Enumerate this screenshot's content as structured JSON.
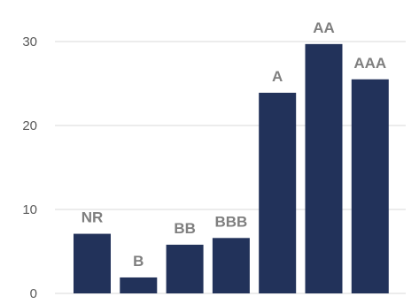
{
  "chart_data": {
    "type": "bar",
    "categories": [
      "NR",
      "B",
      "BB",
      "BBB",
      "A",
      "AA",
      "AAA"
    ],
    "values": [
      7.1,
      1.9,
      5.8,
      6.6,
      23.9,
      29.7,
      25.5
    ],
    "title": "",
    "xlabel": "",
    "ylabel": "",
    "ylim": [
      0,
      30
    ],
    "yticks": [
      "0",
      "10",
      "20",
      "30"
    ],
    "grid": true,
    "legend": "none",
    "bar_color": "#22325a"
  }
}
